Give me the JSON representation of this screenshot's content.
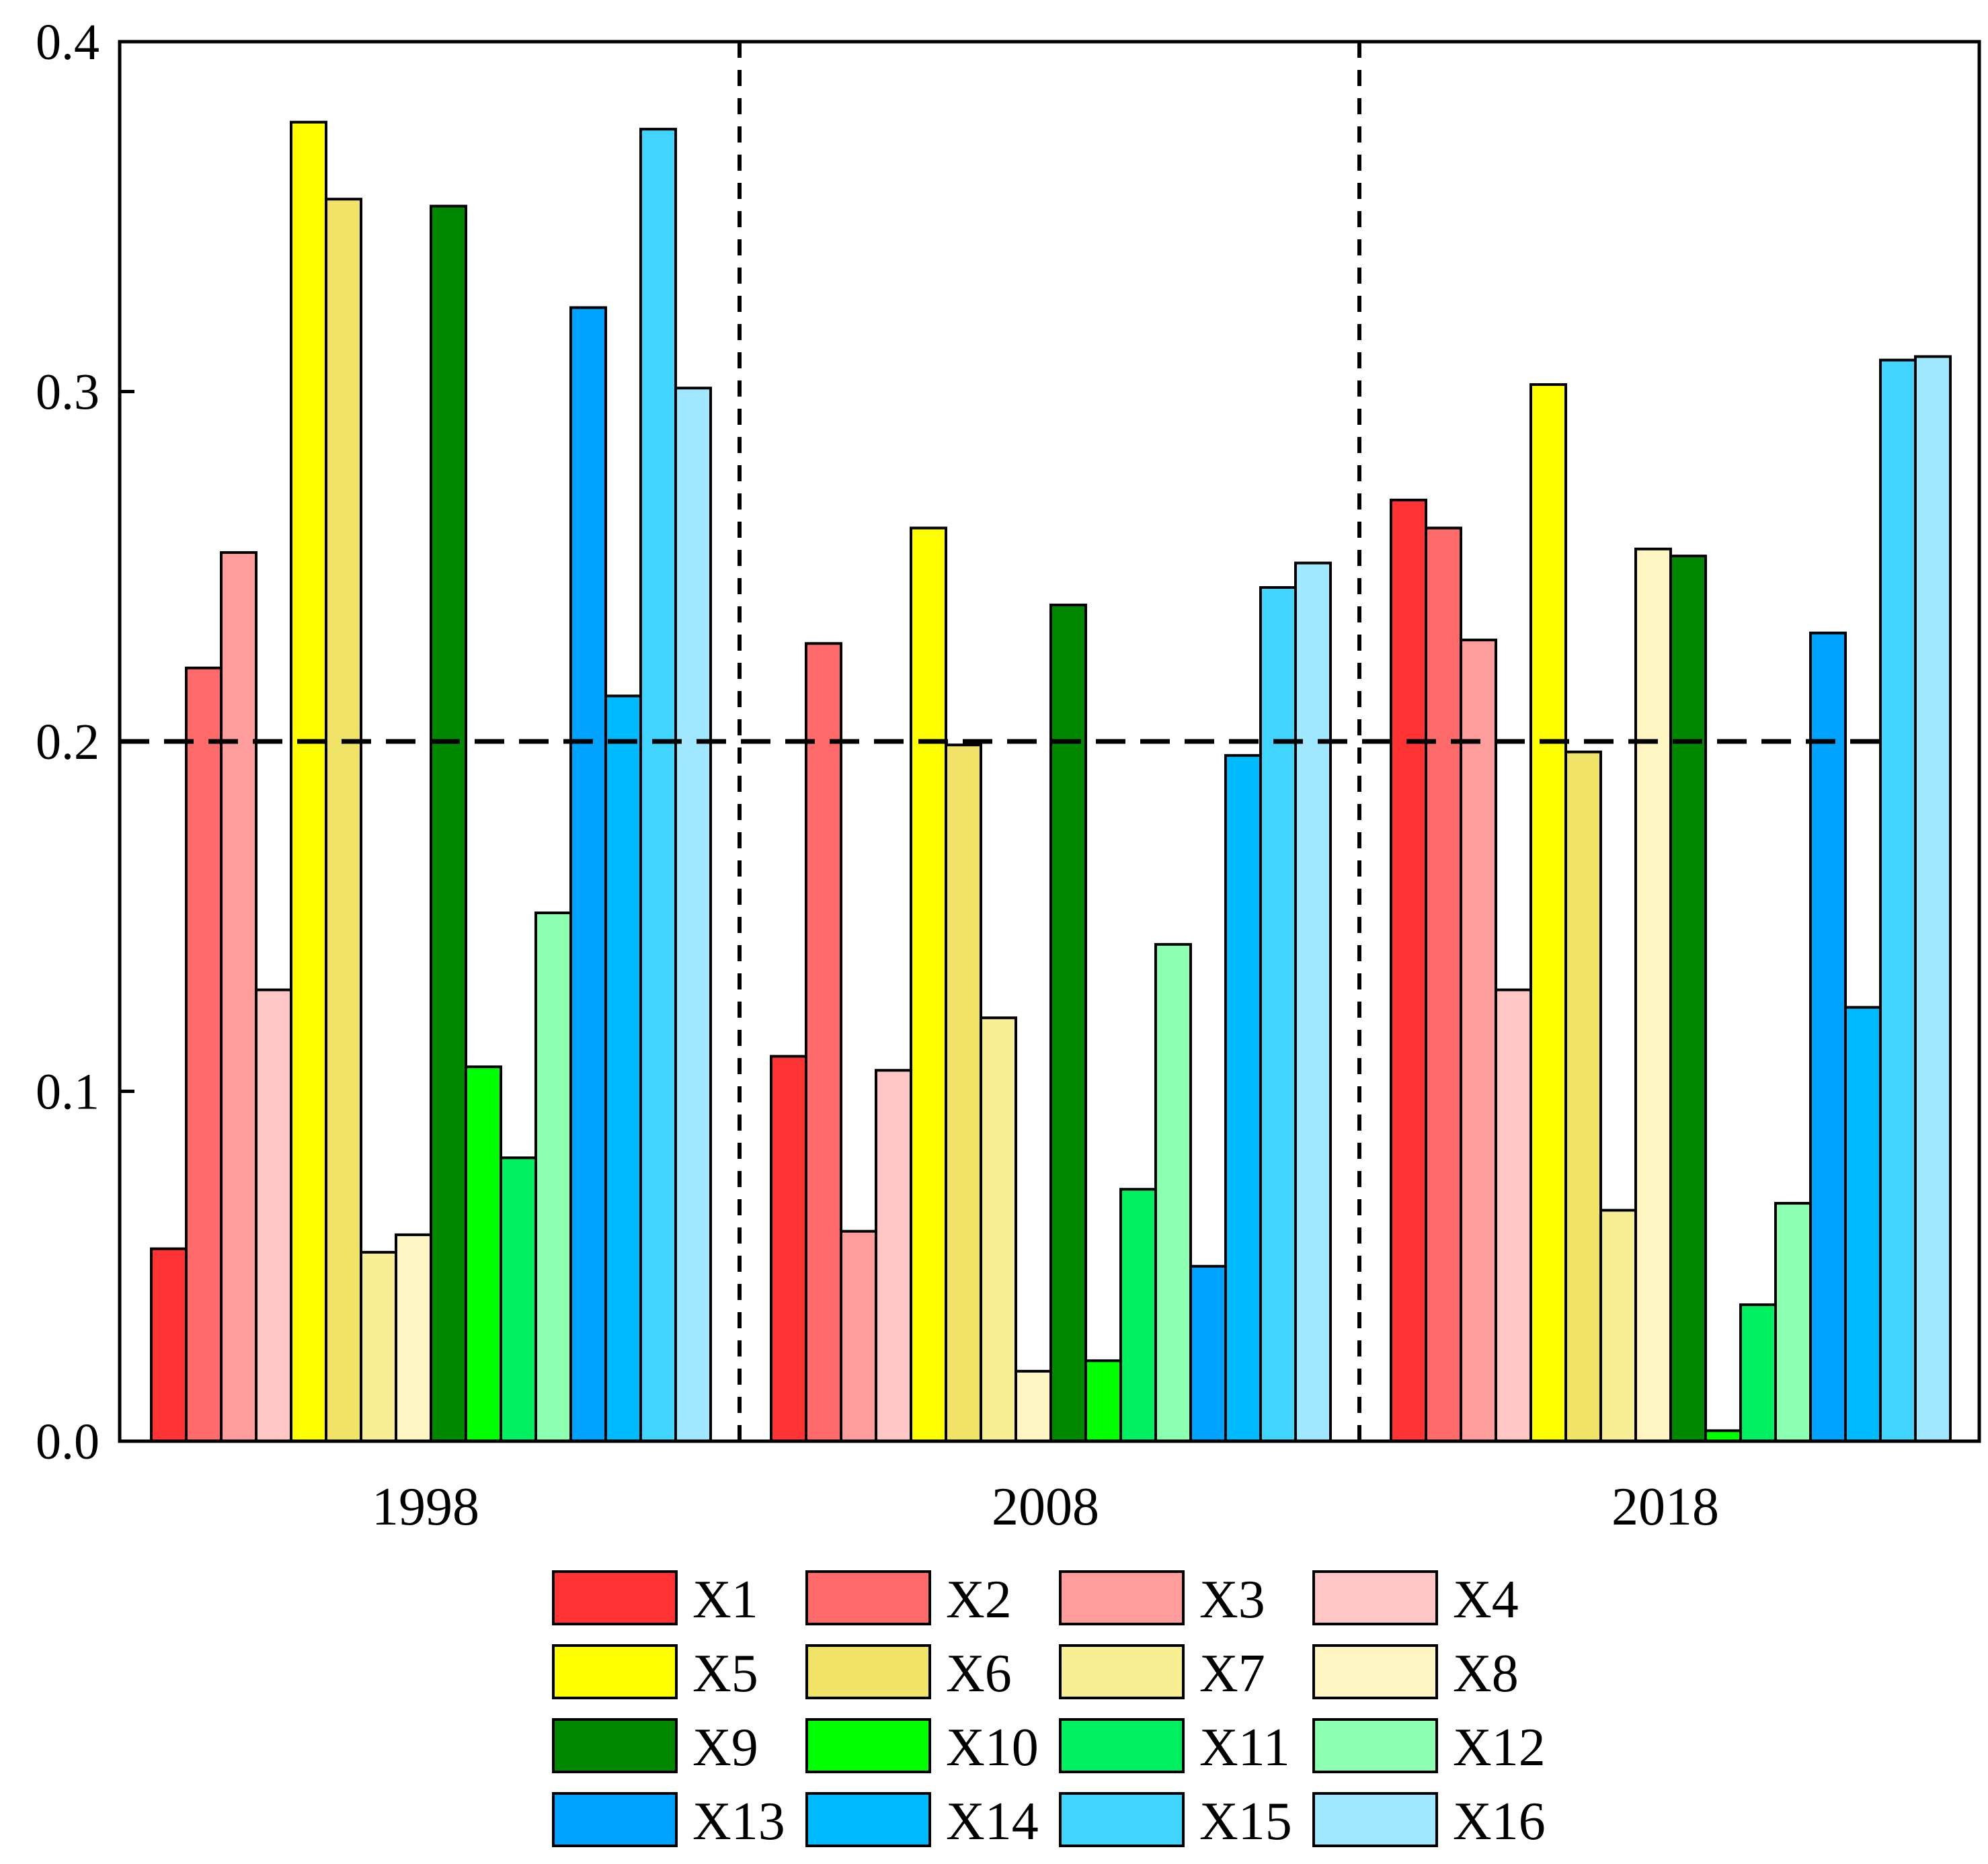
{
  "chart_data": {
    "type": "bar",
    "title": "",
    "xlabel": "",
    "ylabel": "",
    "ylim": [
      0,
      0.4
    ],
    "yticks": [
      0.0,
      0.1,
      0.2,
      0.3,
      0.4
    ],
    "ytick_labels": [
      "0.0",
      "0.1",
      "0.2",
      "0.3",
      "0.4"
    ],
    "categories": [
      "1998",
      "2008",
      "2018"
    ],
    "reference_line": 0.2,
    "group_separators": true,
    "legend_position": "bottom",
    "series": [
      {
        "name": "X1",
        "color": "#ff3333",
        "values": [
          0.055,
          0.11,
          0.269
        ]
      },
      {
        "name": "X2",
        "color": "#ff6b6b",
        "values": [
          0.221,
          0.228,
          0.261
        ]
      },
      {
        "name": "X3",
        "color": "#ff9d9d",
        "values": [
          0.254,
          0.06,
          0.229
        ]
      },
      {
        "name": "X4",
        "color": "#ffc6c6",
        "values": [
          0.129,
          0.106,
          0.129
        ]
      },
      {
        "name": "X5",
        "color": "#ffff00",
        "values": [
          0.377,
          0.261,
          0.302
        ]
      },
      {
        "name": "X6",
        "color": "#f0e368",
        "values": [
          0.355,
          0.199,
          0.197
        ]
      },
      {
        "name": "X7",
        "color": "#f8ee94",
        "values": [
          0.054,
          0.121,
          0.066
        ]
      },
      {
        "name": "X8",
        "color": "#fff6c4",
        "values": [
          0.059,
          0.02,
          0.255
        ]
      },
      {
        "name": "X9",
        "color": "#008800",
        "values": [
          0.353,
          0.239,
          0.253
        ]
      },
      {
        "name": "X10",
        "color": "#00ff00",
        "values": [
          0.107,
          0.023,
          0.003
        ]
      },
      {
        "name": "X11",
        "color": "#00f060",
        "values": [
          0.081,
          0.072,
          0.039
        ]
      },
      {
        "name": "X12",
        "color": "#8cffb0",
        "values": [
          0.151,
          0.142,
          0.068
        ]
      },
      {
        "name": "X13",
        "color": "#00a2ff",
        "values": [
          0.324,
          0.05,
          0.231
        ]
      },
      {
        "name": "X14",
        "color": "#00baff",
        "values": [
          0.213,
          0.196,
          0.124
        ]
      },
      {
        "name": "X15",
        "color": "#40d4ff",
        "values": [
          0.375,
          0.244,
          0.309
        ]
      },
      {
        "name": "X16",
        "color": "#a0e8ff",
        "values": [
          0.301,
          0.251,
          0.31
        ]
      }
    ]
  }
}
